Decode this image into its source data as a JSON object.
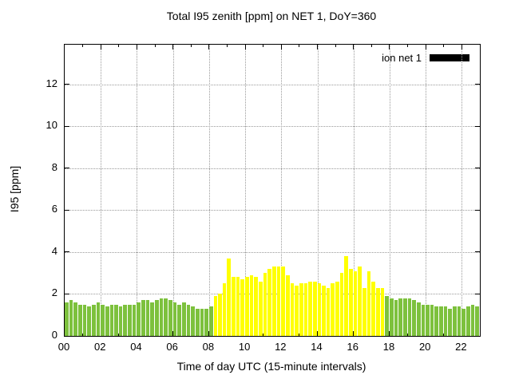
{
  "chart_data": {
    "type": "bar",
    "title": "Total I95 zenith [ppm] on NET 1, DoY=360",
    "xlabel": "Time of day UTC (15-minute intervals)",
    "ylabel": "I95 [ppm]",
    "xlim_hours": [
      0,
      23
    ],
    "ylim": [
      0,
      13.9
    ],
    "x_tick_labels": [
      "00",
      "02",
      "04",
      "06",
      "08",
      "10",
      "12",
      "14",
      "16",
      "18",
      "20",
      "22"
    ],
    "x_tick_hours": [
      0,
      2,
      4,
      6,
      8,
      10,
      12,
      14,
      16,
      18,
      20,
      22
    ],
    "y_ticks": [
      0,
      2,
      4,
      6,
      8,
      10,
      12
    ],
    "grid": true,
    "legend": {
      "label": "ion net 1",
      "swatch_color": "#000000",
      "position": "top-right"
    },
    "bar_width_hours": 0.25,
    "colors": {
      "green": "#7dc13d",
      "yellow": "#ffff00"
    },
    "series": [
      {
        "name": "ion net 1",
        "points": [
          [
            "00:00",
            1.6,
            "green"
          ],
          [
            "00:15",
            1.7,
            "green"
          ],
          [
            "00:30",
            1.6,
            "green"
          ],
          [
            "00:45",
            1.5,
            "green"
          ],
          [
            "01:00",
            1.5,
            "green"
          ],
          [
            "01:15",
            1.4,
            "green"
          ],
          [
            "01:30",
            1.5,
            "green"
          ],
          [
            "01:45",
            1.6,
            "green"
          ],
          [
            "02:00",
            1.5,
            "green"
          ],
          [
            "02:15",
            1.4,
            "green"
          ],
          [
            "02:30",
            1.5,
            "green"
          ],
          [
            "02:45",
            1.5,
            "green"
          ],
          [
            "03:00",
            1.4,
            "green"
          ],
          [
            "03:15",
            1.5,
            "green"
          ],
          [
            "03:30",
            1.5,
            "green"
          ],
          [
            "03:45",
            1.5,
            "green"
          ],
          [
            "04:00",
            1.6,
            "green"
          ],
          [
            "04:15",
            1.7,
            "green"
          ],
          [
            "04:30",
            1.7,
            "green"
          ],
          [
            "04:45",
            1.6,
            "green"
          ],
          [
            "05:00",
            1.7,
            "green"
          ],
          [
            "05:15",
            1.8,
            "green"
          ],
          [
            "05:30",
            1.8,
            "green"
          ],
          [
            "05:45",
            1.7,
            "green"
          ],
          [
            "06:00",
            1.6,
            "green"
          ],
          [
            "06:15",
            1.5,
            "green"
          ],
          [
            "06:30",
            1.6,
            "green"
          ],
          [
            "06:45",
            1.5,
            "green"
          ],
          [
            "07:00",
            1.4,
            "green"
          ],
          [
            "07:15",
            1.3,
            "green"
          ],
          [
            "07:30",
            1.3,
            "green"
          ],
          [
            "07:45",
            1.3,
            "green"
          ],
          [
            "08:00",
            1.4,
            "green"
          ],
          [
            "08:15",
            1.9,
            "yellow"
          ],
          [
            "08:30",
            2.0,
            "yellow"
          ],
          [
            "08:45",
            2.5,
            "yellow"
          ],
          [
            "09:00",
            3.7,
            "yellow"
          ],
          [
            "09:15",
            2.8,
            "yellow"
          ],
          [
            "09:30",
            2.8,
            "yellow"
          ],
          [
            "09:45",
            2.7,
            "yellow"
          ],
          [
            "10:00",
            2.8,
            "yellow"
          ],
          [
            "10:15",
            2.9,
            "yellow"
          ],
          [
            "10:30",
            2.8,
            "yellow"
          ],
          [
            "10:45",
            2.6,
            "yellow"
          ],
          [
            "11:00",
            3.0,
            "yellow"
          ],
          [
            "11:15",
            3.2,
            "yellow"
          ],
          [
            "11:30",
            3.3,
            "yellow"
          ],
          [
            "11:45",
            3.3,
            "yellow"
          ],
          [
            "12:00",
            3.3,
            "yellow"
          ],
          [
            "12:15",
            2.9,
            "yellow"
          ],
          [
            "12:30",
            2.5,
            "yellow"
          ],
          [
            "12:45",
            2.4,
            "yellow"
          ],
          [
            "13:00",
            2.5,
            "yellow"
          ],
          [
            "13:15",
            2.5,
            "yellow"
          ],
          [
            "13:30",
            2.6,
            "yellow"
          ],
          [
            "13:45",
            2.6,
            "yellow"
          ],
          [
            "14:00",
            2.5,
            "yellow"
          ],
          [
            "14:15",
            2.4,
            "yellow"
          ],
          [
            "14:30",
            2.3,
            "yellow"
          ],
          [
            "14:45",
            2.5,
            "yellow"
          ],
          [
            "15:00",
            2.6,
            "yellow"
          ],
          [
            "15:15",
            3.0,
            "yellow"
          ],
          [
            "15:30",
            3.8,
            "yellow"
          ],
          [
            "15:45",
            3.2,
            "yellow"
          ],
          [
            "16:00",
            3.1,
            "yellow"
          ],
          [
            "16:15",
            3.3,
            "yellow"
          ],
          [
            "16:30",
            2.3,
            "yellow"
          ],
          [
            "16:45",
            3.1,
            "yellow"
          ],
          [
            "17:00",
            2.6,
            "yellow"
          ],
          [
            "17:15",
            2.3,
            "yellow"
          ],
          [
            "17:30",
            2.3,
            "yellow"
          ],
          [
            "17:45",
            1.9,
            "green"
          ],
          [
            "18:00",
            1.8,
            "green"
          ],
          [
            "18:15",
            1.7,
            "green"
          ],
          [
            "18:30",
            1.8,
            "green"
          ],
          [
            "18:45",
            1.8,
            "green"
          ],
          [
            "19:00",
            1.8,
            "green"
          ],
          [
            "19:15",
            1.7,
            "green"
          ],
          [
            "19:30",
            1.6,
            "green"
          ],
          [
            "19:45",
            1.5,
            "green"
          ],
          [
            "20:00",
            1.5,
            "green"
          ],
          [
            "20:15",
            1.5,
            "green"
          ],
          [
            "20:30",
            1.4,
            "green"
          ],
          [
            "20:45",
            1.4,
            "green"
          ],
          [
            "21:00",
            1.4,
            "green"
          ],
          [
            "21:15",
            1.3,
            "green"
          ],
          [
            "21:30",
            1.4,
            "green"
          ],
          [
            "21:45",
            1.4,
            "green"
          ],
          [
            "22:00",
            1.3,
            "green"
          ],
          [
            "22:15",
            1.4,
            "green"
          ],
          [
            "22:30",
            1.5,
            "green"
          ],
          [
            "22:45",
            1.4,
            "green"
          ]
        ]
      }
    ]
  }
}
